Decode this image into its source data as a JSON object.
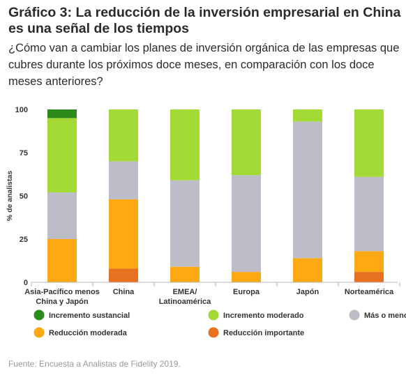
{
  "title": "Gráfico 3: La reducción de la inversión empresarial en China es una señal de los tiempos",
  "subtitle": "¿Cómo van a cambiar los planes de inversión orgánica de las empresas que cubres durante los próximos doce meses, en comparación con los doce meses anteriores?",
  "source": "Fuente: Encuesta a Analistas de Fidelity 2019.",
  "chart_data": {
    "type": "bar",
    "stacked": true,
    "ylabel": "% de analistas",
    "xlabel": "",
    "ylim": [
      0,
      100
    ],
    "yticks": [
      0,
      25,
      50,
      75,
      100
    ],
    "categories": [
      [
        "Asia-Pacífico menos",
        "China y Japón"
      ],
      [
        "China"
      ],
      [
        "EMEA/",
        "Latinoamérica"
      ],
      [
        "Europa"
      ],
      [
        "Japón"
      ],
      [
        "Norteamérica"
      ]
    ],
    "series": [
      {
        "name": "Reducción importante",
        "color": "#E8711F",
        "values": [
          0,
          8,
          0,
          0,
          0,
          6
        ]
      },
      {
        "name": "Reducción moderada",
        "color": "#FDA914",
        "values": [
          25,
          40,
          9,
          6,
          14,
          12
        ]
      },
      {
        "name": "Más o menos igual",
        "color": "#BDBDC7",
        "values": [
          27,
          22,
          50,
          56,
          79,
          43
        ]
      },
      {
        "name": "Incremento moderado",
        "color": "#A3DA35",
        "values": [
          43,
          30,
          41,
          38,
          7,
          39
        ]
      },
      {
        "name": "Incremento sustancial",
        "color": "#2D8B1E",
        "values": [
          5,
          0,
          0,
          0,
          0,
          0
        ]
      }
    ],
    "legend": {
      "placement": "bottom",
      "order": [
        "Incremento sustancial",
        "Incremento moderado",
        "Más o menos igual",
        "Reducción moderada",
        "Reducción importante"
      ]
    },
    "grid": false
  }
}
